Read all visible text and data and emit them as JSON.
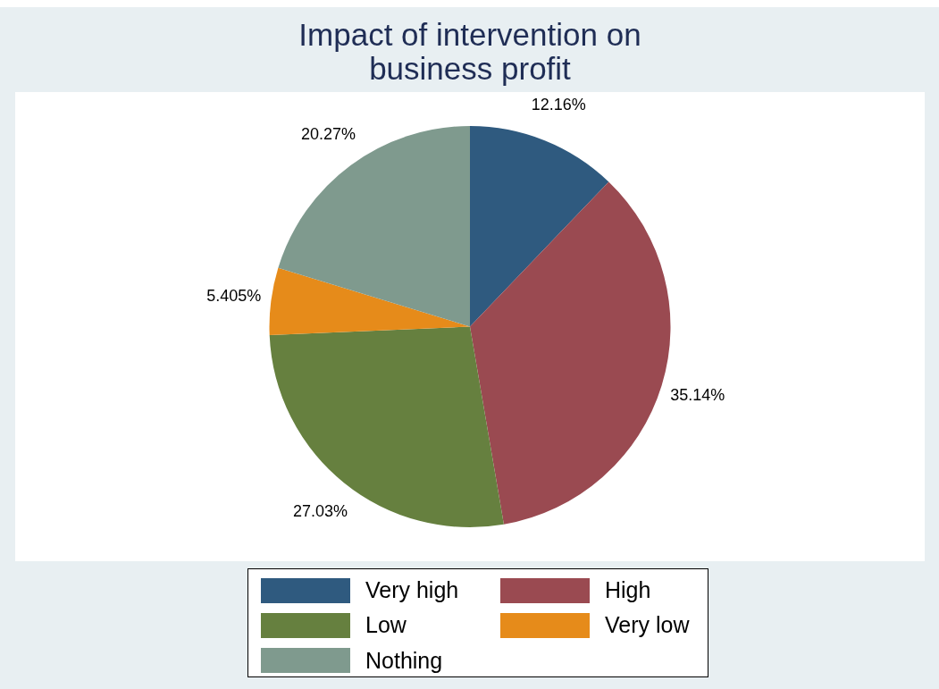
{
  "chart_data": {
    "type": "pie",
    "title": "Impact of intervention on business profit",
    "categories": [
      "Very high",
      "High",
      "Low",
      "Very low",
      "Nothing"
    ],
    "values": [
      12.16,
      35.14,
      27.03,
      5.405,
      20.27
    ],
    "colors": [
      "#2f5a7f",
      "#9a4a51",
      "#66803f",
      "#e68b1a",
      "#7f9a8e"
    ],
    "value_labels": [
      "12.16%",
      "35.14%",
      "27.03%",
      "5.405%",
      "20.27%"
    ],
    "legend": "bottom"
  }
}
